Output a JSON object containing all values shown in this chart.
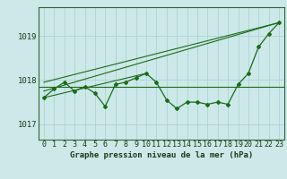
{
  "x": [
    0,
    1,
    2,
    3,
    4,
    5,
    6,
    7,
    8,
    9,
    10,
    11,
    12,
    13,
    14,
    15,
    16,
    17,
    18,
    19,
    20,
    21,
    22,
    23
  ],
  "series1": [
    1017.6,
    1017.8,
    1017.95,
    1017.75,
    1017.85,
    1017.7,
    1017.4,
    1017.9,
    1017.95,
    1018.05,
    1018.15,
    1017.95,
    1017.55,
    1017.35,
    1017.5,
    1017.5,
    1017.45,
    1017.5,
    1017.45,
    1017.9,
    1018.15,
    1018.75,
    1019.05,
    1019.3
  ],
  "series2_y": 1017.85,
  "series3_x": [
    0,
    10
  ],
  "series3_y": [
    1017.6,
    1018.15
  ],
  "series4_x": [
    0,
    23
  ],
  "series4_y": [
    1017.75,
    1019.3
  ],
  "series5_x": [
    0,
    23
  ],
  "series5_y": [
    1017.95,
    1019.3
  ],
  "yticks": [
    1017,
    1018,
    1019
  ],
  "ylim": [
    1016.65,
    1019.65
  ],
  "xlim": [
    -0.5,
    23.5
  ],
  "line_color": "#1a6b1a",
  "bg_color": "#cce8e8",
  "grid_color": "#aacfcf",
  "xlabel": "Graphe pression niveau de la mer (hPa)",
  "xlabel_fontsize": 6.5,
  "tick_fontsize": 6.0,
  "ytick_fontsize": 6.5
}
